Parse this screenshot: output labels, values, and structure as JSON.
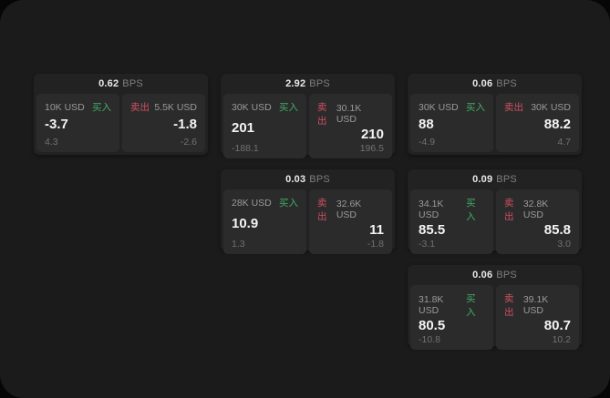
{
  "theme": {
    "page_bg": "#060606",
    "panel_bg": "#1b1b1b",
    "card_bg": "#222222",
    "pane_bg": "#2b2b2b",
    "buy_color": "#3fae68",
    "sell_color": "#cf4f63",
    "value_color": "#f4f4f4",
    "muted_color": "#9a9a9a"
  },
  "labels": {
    "bps_unit": "BPS",
    "buy": "买入",
    "sell": "卖出"
  },
  "cards": [
    {
      "bps": "0.62",
      "buy": {
        "amount": "10K USD",
        "value": "-3.7",
        "delta": "4.3"
      },
      "sell": {
        "amount": "5.5K USD",
        "value": "-1.8",
        "delta": "-2.6"
      }
    },
    {
      "bps": "2.92",
      "buy": {
        "amount": "30K USD",
        "value": "201",
        "delta": "-188.1"
      },
      "sell": {
        "amount": "30.1K USD",
        "value": "210",
        "delta": "196.5"
      }
    },
    {
      "bps": "0.06",
      "buy": {
        "amount": "30K USD",
        "value": "88",
        "delta": "-4.9"
      },
      "sell": {
        "amount": "30K USD",
        "value": "88.2",
        "delta": "4.7"
      }
    },
    {
      "bps": "0.03",
      "buy": {
        "amount": "28K USD",
        "value": "10.9",
        "delta": "1.3"
      },
      "sell": {
        "amount": "32.6K USD",
        "value": "11",
        "delta": "-1.8"
      }
    },
    {
      "bps": "0.09",
      "buy": {
        "amount": "34.1K USD",
        "value": "85.5",
        "delta": "-3.1"
      },
      "sell": {
        "amount": "32.8K USD",
        "value": "85.8",
        "delta": "3.0"
      }
    },
    {
      "bps": "0.06",
      "buy": {
        "amount": "31.8K USD",
        "value": "80.5",
        "delta": "-10.8"
      },
      "sell": {
        "amount": "39.1K USD",
        "value": "80.7",
        "delta": "10.2"
      }
    }
  ]
}
